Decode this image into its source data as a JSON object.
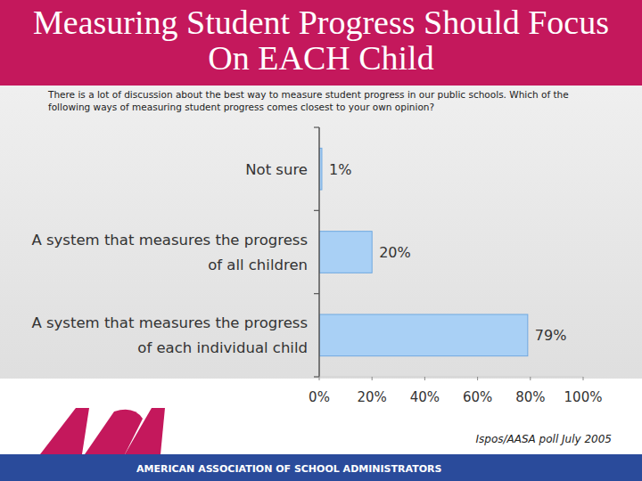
{
  "chart_data": {
    "type": "bar",
    "orientation": "horizontal",
    "title": "Measuring Student Progress Should Focus On EACH Child",
    "subtitle": "There is a lot of discussion about the best way to measure student progress in our public schools.  Which of the following ways of measuring student progress comes closest to your own opinion?",
    "categories": [
      "Not sure",
      "A system that measures the progress of all children",
      "A system that measures the progress of each individual child"
    ],
    "values": [
      1,
      20,
      79
    ],
    "value_labels": [
      "1%",
      "20%",
      "79%"
    ],
    "data_labels": true,
    "color": "#a9d0f5",
    "xlim": [
      0,
      100
    ],
    "xticks": [
      {
        "value": 0,
        "label": "0%"
      },
      {
        "value": 20,
        "label": "20%"
      },
      {
        "value": 40,
        "label": "40%"
      },
      {
        "value": 60,
        "label": "60%"
      },
      {
        "value": 80,
        "label": "80%"
      },
      {
        "value": 100,
        "label": "100%"
      }
    ],
    "grid": false,
    "source": "Ispos/AASA poll July 2005",
    "footer": "AMERICAN ASSOCIATION OF SCHOOL ADMINISTRATORS"
  }
}
